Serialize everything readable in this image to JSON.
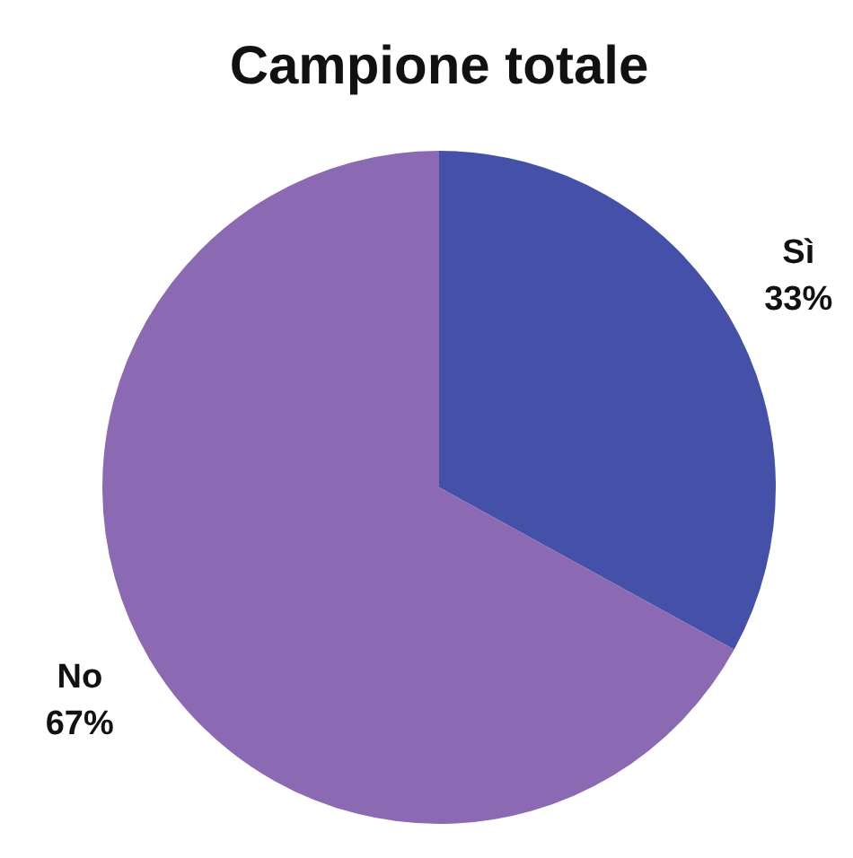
{
  "chart_data": {
    "type": "pie",
    "title": "Campione totale",
    "categories": [
      "Sì",
      "No"
    ],
    "values": [
      33,
      67
    ],
    "colors": [
      "#4551a8",
      "#8b69b3"
    ],
    "value_labels": [
      "33%",
      "67%"
    ],
    "legend": false
  }
}
